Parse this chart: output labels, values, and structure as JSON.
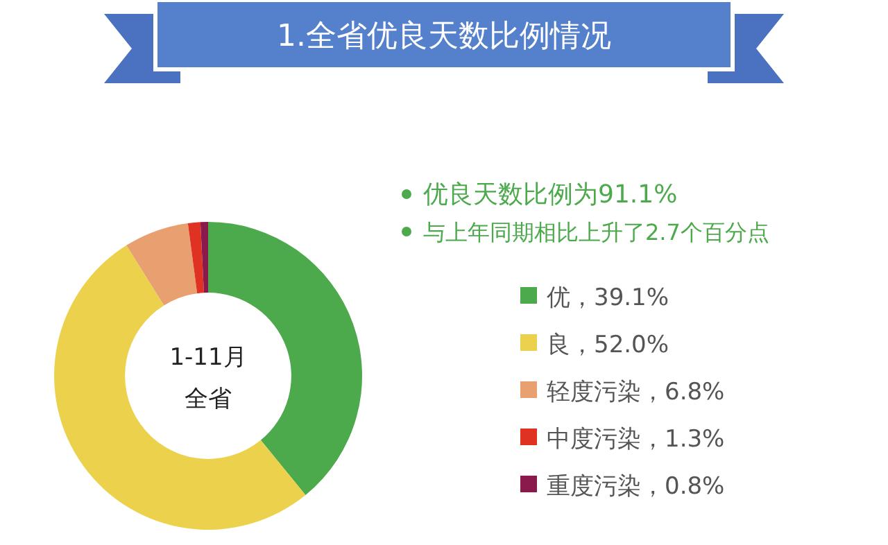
{
  "chart_data": {
    "type": "donut",
    "title": "1.全省优良天数比例情况",
    "categories": [
      "优，39.1%",
      "良，52.0%",
      "轻度污染，6.8%",
      "中度污染，1.3%",
      "重度污染，0.8%"
    ],
    "values": [
      39.1,
      52.0,
      6.8,
      1.3,
      0.8
    ],
    "colors": [
      "#4caa4c",
      "#ecd24c",
      "#e8a070",
      "#e03222",
      "#8a1a4c"
    ],
    "legend": "right",
    "annotations": [
      "1-11月",
      "全省",
      "优良天数比例为91.1%",
      "与上年同期相比上升了2.7个百分点"
    ]
  }
}
